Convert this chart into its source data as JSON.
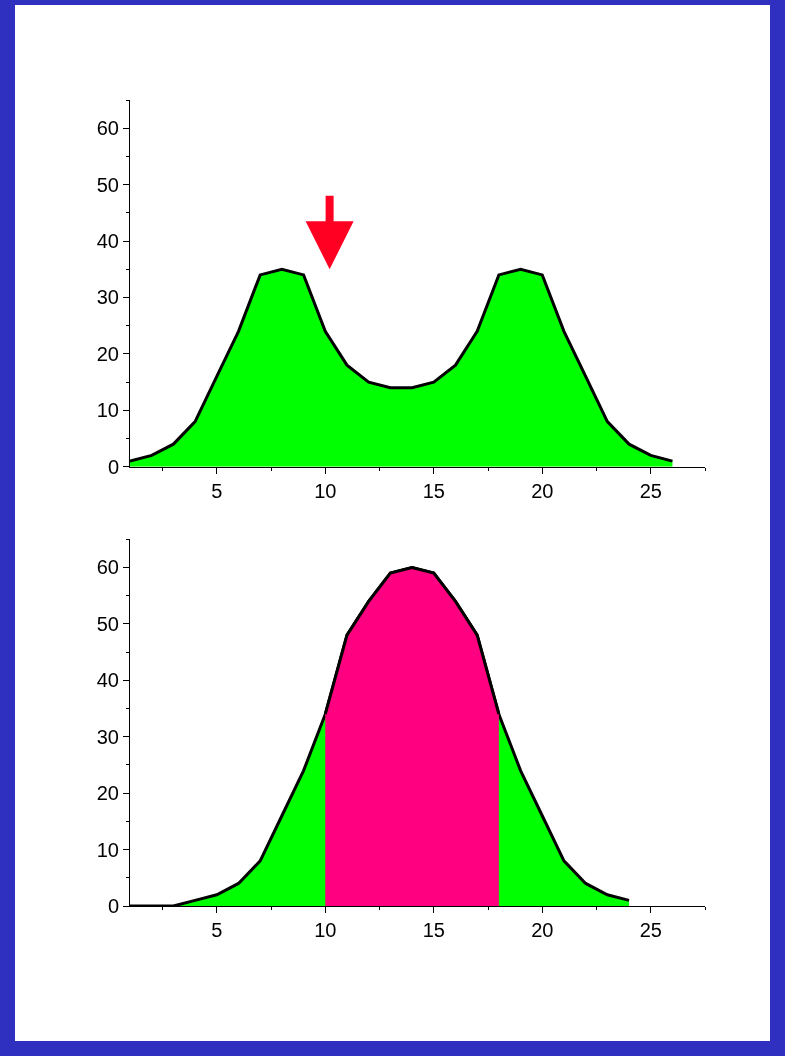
{
  "chart_data": [
    {
      "type": "area",
      "x": [
        1,
        2,
        3,
        4,
        5,
        6,
        7,
        8,
        9,
        10,
        11,
        12,
        13,
        14,
        15,
        16,
        17,
        18,
        19,
        20,
        21,
        22,
        23,
        24,
        25,
        26
      ],
      "series": [
        {
          "color": "#00ff00",
          "values": [
            1,
            2,
            4,
            8,
            16,
            24,
            34,
            35,
            34,
            24,
            18,
            15,
            14,
            14,
            15,
            18,
            24,
            34,
            35,
            34,
            24,
            16,
            8,
            4,
            2,
            1
          ]
        }
      ],
      "xlim": [
        1,
        27.5
      ],
      "xticks": [
        5,
        10,
        15,
        20,
        25
      ],
      "ylim": [
        0,
        65
      ],
      "yticks": [
        0,
        10,
        20,
        30,
        40,
        50,
        60
      ]
    },
    {
      "type": "area",
      "x": [
        1,
        2,
        3,
        4,
        5,
        6,
        7,
        8,
        9,
        10,
        11,
        12,
        13,
        14,
        15,
        16,
        17,
        18,
        19,
        20,
        21,
        22,
        23,
        24
      ],
      "series": [
        {
          "color": "#00ff00",
          "values": [
            0,
            0,
            0,
            1,
            2,
            4,
            8,
            16,
            24,
            34,
            48,
            54,
            59,
            60,
            59,
            54,
            48,
            34,
            24,
            16,
            8,
            4,
            2,
            1
          ]
        },
        {
          "color": "#ff0080",
          "x": [
            10,
            11,
            12,
            13,
            14,
            15,
            16,
            17,
            18
          ],
          "values": [
            34,
            48,
            54,
            59,
            60,
            59,
            54,
            48,
            34
          ]
        }
      ],
      "xlim": [
        1,
        27.5
      ],
      "xticks": [
        5,
        10,
        15,
        20,
        25
      ],
      "ylim": [
        0,
        65
      ],
      "yticks": [
        0,
        10,
        20,
        30,
        40,
        50,
        60
      ]
    }
  ]
}
